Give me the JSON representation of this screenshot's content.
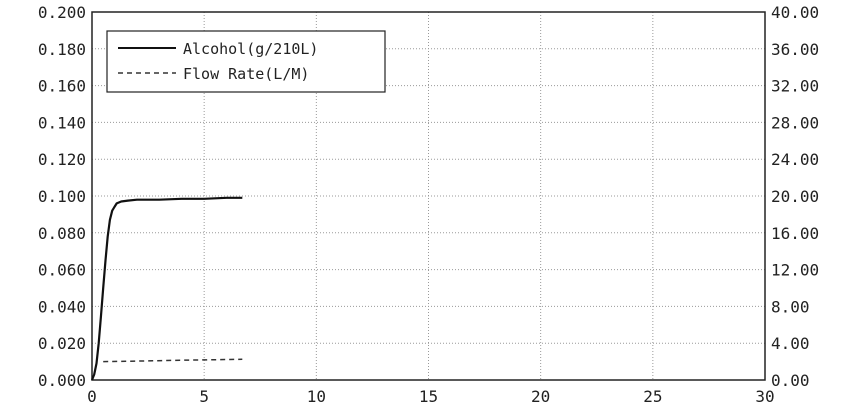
{
  "chart_data": {
    "type": "line",
    "title": "",
    "xlabel": "",
    "ylabel": "",
    "y2label": "",
    "xlim": [
      0,
      30
    ],
    "ylim": [
      0,
      0.2
    ],
    "y2lim": [
      0,
      40
    ],
    "grid": true,
    "legend_position": "top-left",
    "x_ticks": [
      "0",
      "5",
      "10",
      "15",
      "20",
      "25",
      "30"
    ],
    "y_ticks": [
      "0.000",
      "0.020",
      "0.040",
      "0.060",
      "0.080",
      "0.100",
      "0.120",
      "0.140",
      "0.160",
      "0.180",
      "0.200"
    ],
    "y2_ticks": [
      "0.00",
      "4.00",
      "8.00",
      "12.00",
      "16.00",
      "20.00",
      "24.00",
      "28.00",
      "32.00",
      "36.00",
      "40.00"
    ],
    "series": [
      {
        "name": "Alcohol(g/210L)",
        "axis": "left",
        "style": "solid",
        "color": "#111111",
        "x": [
          0,
          0.1,
          0.2,
          0.3,
          0.4,
          0.5,
          0.6,
          0.7,
          0.8,
          0.9,
          1.0,
          1.1,
          1.3,
          1.6,
          2.0,
          3.0,
          4.0,
          5.0,
          6.0,
          6.7
        ],
        "y": [
          0.0,
          0.003,
          0.009,
          0.02,
          0.035,
          0.05,
          0.065,
          0.078,
          0.087,
          0.092,
          0.094,
          0.096,
          0.097,
          0.0975,
          0.098,
          0.098,
          0.0985,
          0.0985,
          0.099,
          0.099
        ]
      },
      {
        "name": "Flow Rate(L/M)",
        "axis": "right",
        "style": "dashed",
        "color": "#333333",
        "x": [
          0.5,
          2.0,
          4.0,
          6.7
        ],
        "y": [
          2.0,
          2.05,
          2.15,
          2.25
        ]
      }
    ]
  }
}
